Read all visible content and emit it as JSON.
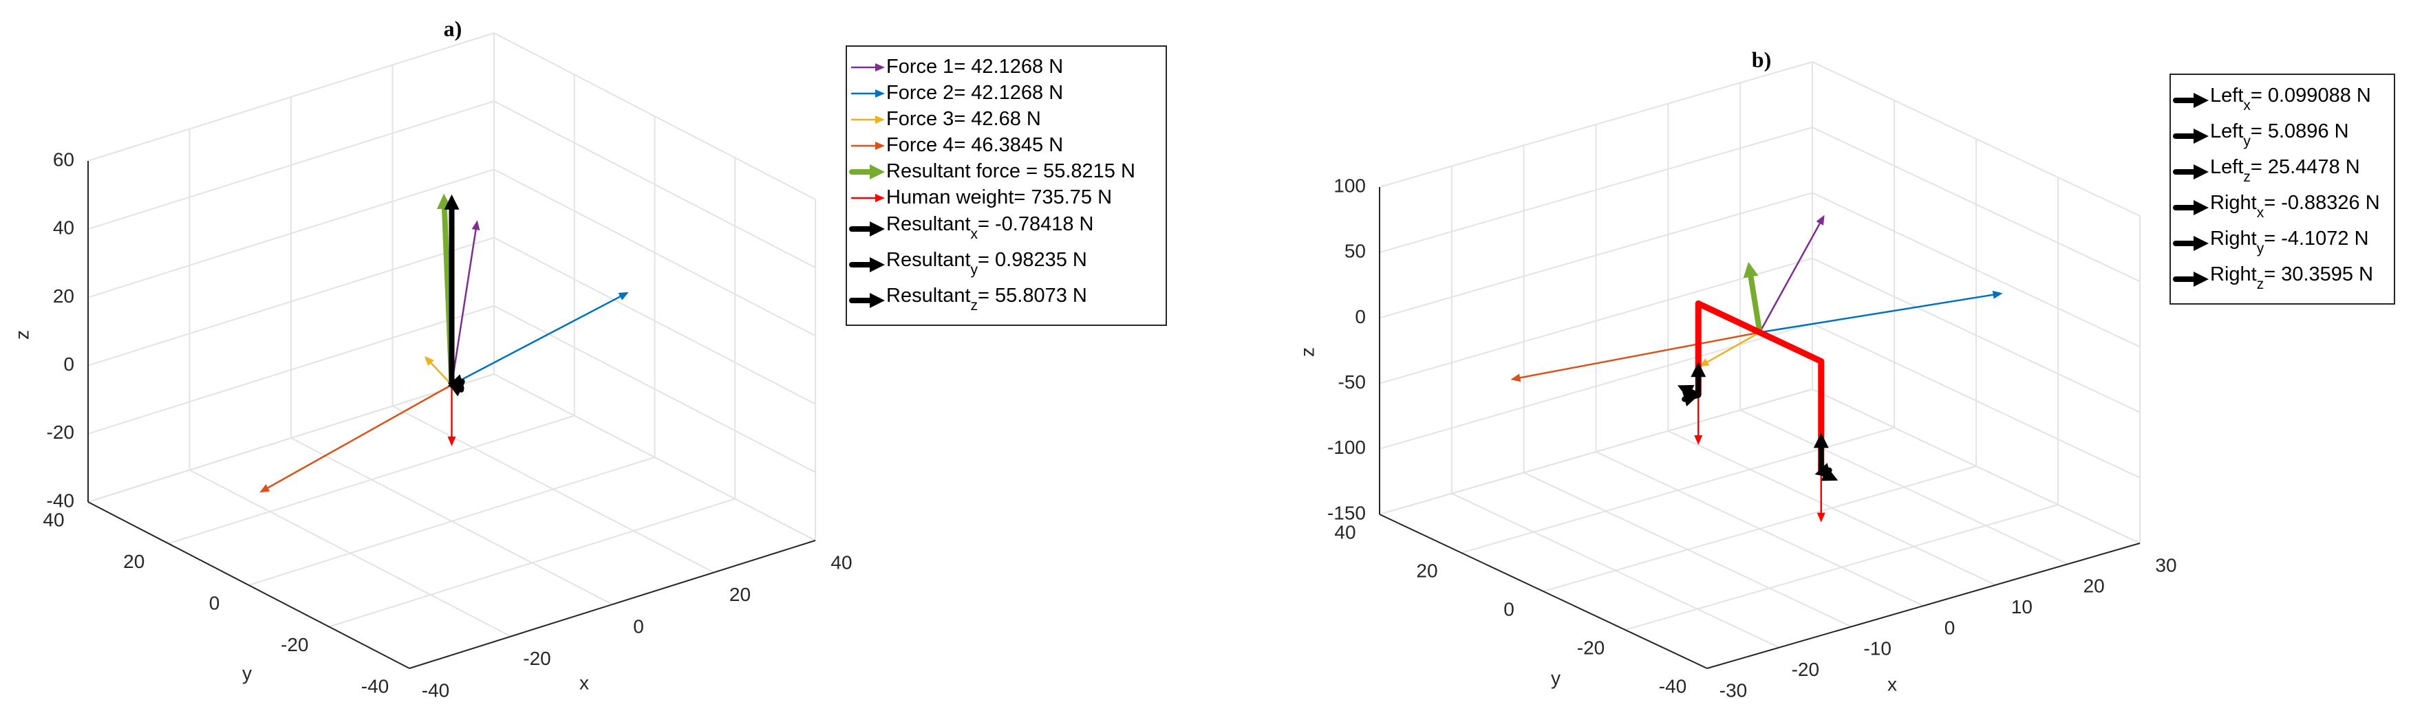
{
  "chart_data": [
    {
      "type": "quiver3",
      "title": "a)",
      "xlabel": "x",
      "ylabel": "y",
      "zlabel": "z",
      "xlim": [
        -40,
        40
      ],
      "ylim": [
        -40,
        40
      ],
      "zlim": [
        -40,
        60
      ],
      "xticks": [
        -40,
        -20,
        0,
        20,
        40
      ],
      "yticks": [
        -40,
        -20,
        0,
        20,
        40
      ],
      "zticks": [
        -40,
        -20,
        0,
        20,
        40,
        60
      ],
      "grid": true,
      "series": [
        {
          "name": [
            "Force 1= 42.1268 N"
          ],
          "color": "#7e2f8e",
          "origin": [
            0,
            0,
            0
          ],
          "values": [
            9,
            5,
            41
          ]
        },
        {
          "name": [
            "Force 2= 42.1268 N"
          ],
          "color": "#0072bd",
          "origin": [
            0,
            0,
            0
          ],
          "values": [
            42,
            9,
            2
          ]
        },
        {
          "name": [
            "Force 3= 42.68 N"
          ],
          "color": "#edb120",
          "origin": [
            0,
            0,
            0
          ],
          "values": [
            -3,
            3,
            8
          ]
        },
        {
          "name": [
            "Force 4= 46.3845 N"
          ],
          "color": "#d95319",
          "origin": [
            0,
            0,
            0
          ],
          "values": [
            -45,
            -9,
            -5
          ]
        },
        {
          "name": [
            "Resultant force = 55.8215 N"
          ],
          "color": "#77ac30",
          "style": "bold",
          "origin": [
            0,
            0,
            0
          ],
          "values": [
            -0.78,
            0.98,
            55.8
          ]
        },
        {
          "name": [
            "Human weight= 735.75 N"
          ],
          "color": "#ff0000",
          "origin": [
            0,
            0,
            0
          ],
          "values": [
            0,
            0,
            -18
          ]
        },
        {
          "name": [
            "Resultant",
            "x",
            "= -0.78418 N"
          ],
          "color": "#000000",
          "style": "bold",
          "origin": [
            0,
            0,
            0
          ],
          "values": [
            -0.78418,
            0,
            0
          ]
        },
        {
          "name": [
            "Resultant",
            "y",
            "= 0.98235 N"
          ],
          "color": "#000000",
          "style": "bold",
          "origin": [
            0,
            0,
            0
          ],
          "values": [
            0,
            0.98235,
            0
          ]
        },
        {
          "name": [
            "Resultant",
            "z",
            "= 55.8073 N"
          ],
          "color": "#000000",
          "style": "bold",
          "origin": [
            0,
            0,
            0
          ],
          "values": [
            0,
            0,
            55.8073
          ]
        }
      ]
    },
    {
      "type": "quiver3",
      "title": "b)",
      "xlabel": "x",
      "ylabel": "y",
      "zlabel": "z",
      "xlim": [
        -30,
        30
      ],
      "ylim": [
        -40,
        40
      ],
      "zlim": [
        -150,
        100
      ],
      "xticks": [
        -30,
        -20,
        -10,
        0,
        10,
        20,
        30
      ],
      "yticks": [
        -40,
        -20,
        0,
        20,
        40
      ],
      "zticks": [
        -150,
        -100,
        -50,
        0,
        50,
        100
      ],
      "grid": true,
      "series": [
        {
          "color": "#7e2f8e",
          "origin": [
            0,
            0,
            0
          ],
          "values": [
            5,
            -7,
            92
          ]
        },
        {
          "color": "#0072bd",
          "origin": [
            0,
            0,
            0
          ],
          "values": [
            28,
            -10,
            0
          ]
        },
        {
          "color": "#d95319",
          "origin": [
            0,
            0,
            0
          ],
          "values": [
            -30,
            8,
            0
          ]
        },
        {
          "color": "#edb120",
          "origin": [
            0,
            0,
            0
          ],
          "values": [
            -5,
            6,
            -27
          ]
        },
        {
          "color": "#77ac30",
          "style": "bold",
          "origin": [
            0,
            0,
            0
          ],
          "values": [
            -1,
            1,
            54
          ]
        },
        {
          "color": "#ff0000",
          "style": "bold",
          "kind": "line",
          "x": [
            0,
            0,
            0,
            0
          ],
          "y": [
            15,
            15,
            -15,
            -15
          ],
          "z": [
            -70,
            0,
            0,
            -85
          ]
        },
        {
          "color": "#ff0000",
          "origin": [
            0,
            15,
            -70
          ],
          "values": [
            0,
            0,
            -38
          ]
        },
        {
          "color": "#ff0000",
          "origin": [
            0,
            -15,
            -85
          ],
          "values": [
            0,
            0,
            -38
          ]
        },
        {
          "name": [
            "Left",
            "x",
            "= 0.099088 N"
          ],
          "color": "#000000",
          "style": "bold",
          "origin": [
            0,
            15,
            -70
          ],
          "values": [
            0.099088,
            0,
            0
          ]
        },
        {
          "name": [
            "Left",
            "y",
            "= 5.0896 N"
          ],
          "color": "#000000",
          "style": "bold",
          "origin": [
            0,
            15,
            -70
          ],
          "values": [
            0,
            5.0896,
            0
          ]
        },
        {
          "name": [
            "Left",
            "z",
            "= 25.4478 N"
          ],
          "color": "#000000",
          "style": "bold",
          "origin": [
            0,
            15,
            -70
          ],
          "values": [
            0,
            0,
            25.4478
          ]
        },
        {
          "name": [
            "Right",
            "x",
            "= -0.88326 N"
          ],
          "color": "#000000",
          "style": "bold",
          "origin": [
            0,
            -15,
            -85
          ],
          "values": [
            -0.88326,
            0,
            0
          ]
        },
        {
          "name": [
            "Right",
            "y",
            "= -4.1072 N"
          ],
          "color": "#000000",
          "style": "bold",
          "origin": [
            0,
            -15,
            -85
          ],
          "values": [
            0,
            -4.1072,
            0
          ]
        },
        {
          "name": [
            "Right",
            "z",
            "= 30.3595 N"
          ],
          "color": "#000000",
          "style": "bold",
          "origin": [
            0,
            -15,
            -85
          ],
          "values": [
            0,
            0,
            30.3595
          ]
        }
      ]
    }
  ]
}
